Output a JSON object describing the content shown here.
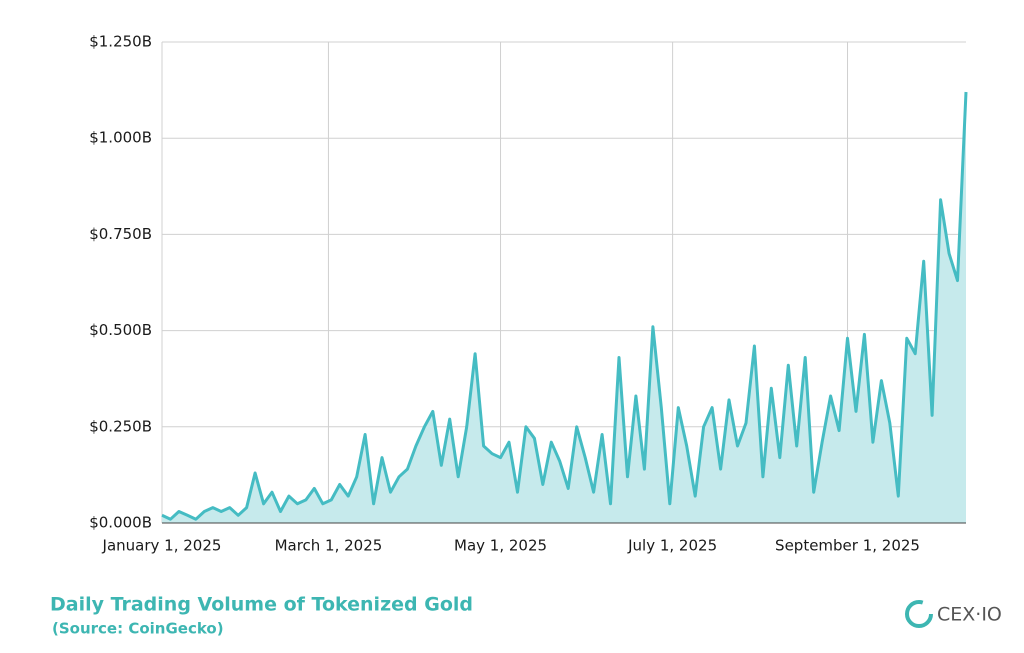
{
  "chart_data": {
    "type": "area",
    "title": "Daily Trading Volume of Tokenized Gold",
    "subtitle": "(Source: CoinGecko)",
    "brand": "CEX·IO",
    "color": "#45bcc3",
    "fill": "#c6eaec",
    "grid": true,
    "x": [
      "2025-01-01",
      "2025-01-04",
      "2025-01-07",
      "2025-01-10",
      "2025-01-13",
      "2025-01-16",
      "2025-01-19",
      "2025-01-22",
      "2025-01-25",
      "2025-01-28",
      "2025-01-31",
      "2025-02-03",
      "2025-02-06",
      "2025-02-09",
      "2025-02-12",
      "2025-02-15",
      "2025-02-18",
      "2025-02-21",
      "2025-02-24",
      "2025-02-27",
      "2025-03-02",
      "2025-03-05",
      "2025-03-08",
      "2025-03-11",
      "2025-03-14",
      "2025-03-17",
      "2025-03-20",
      "2025-03-23",
      "2025-03-26",
      "2025-03-29",
      "2025-04-01",
      "2025-04-04",
      "2025-04-07",
      "2025-04-10",
      "2025-04-13",
      "2025-04-16",
      "2025-04-19",
      "2025-04-22",
      "2025-04-25",
      "2025-04-28",
      "2025-05-01",
      "2025-05-04",
      "2025-05-07",
      "2025-05-10",
      "2025-05-13",
      "2025-05-16",
      "2025-05-19",
      "2025-05-22",
      "2025-05-25",
      "2025-05-28",
      "2025-05-31",
      "2025-06-03",
      "2025-06-06",
      "2025-06-09",
      "2025-06-12",
      "2025-06-15",
      "2025-06-18",
      "2025-06-21",
      "2025-06-24",
      "2025-06-27",
      "2025-06-30",
      "2025-07-03",
      "2025-07-06",
      "2025-07-09",
      "2025-07-12",
      "2025-07-15",
      "2025-07-18",
      "2025-07-21",
      "2025-07-24",
      "2025-07-27",
      "2025-07-30",
      "2025-08-02",
      "2025-08-05",
      "2025-08-08",
      "2025-08-11",
      "2025-08-14",
      "2025-08-17",
      "2025-08-20",
      "2025-08-23",
      "2025-08-26",
      "2025-08-29",
      "2025-09-01",
      "2025-09-04",
      "2025-09-07",
      "2025-09-10",
      "2025-09-13",
      "2025-09-16",
      "2025-09-19",
      "2025-09-22",
      "2025-09-25",
      "2025-09-28",
      "2025-10-01",
      "2025-10-04",
      "2025-10-07",
      "2025-10-10",
      "2025-10-13"
    ],
    "values": [
      0.02,
      0.01,
      0.03,
      0.02,
      0.01,
      0.03,
      0.04,
      0.03,
      0.04,
      0.02,
      0.04,
      0.13,
      0.05,
      0.08,
      0.03,
      0.07,
      0.05,
      0.06,
      0.09,
      0.05,
      0.06,
      0.1,
      0.07,
      0.12,
      0.23,
      0.05,
      0.17,
      0.08,
      0.12,
      0.14,
      0.2,
      0.25,
      0.29,
      0.15,
      0.27,
      0.12,
      0.25,
      0.44,
      0.2,
      0.18,
      0.17,
      0.21,
      0.08,
      0.25,
      0.22,
      0.1,
      0.21,
      0.16,
      0.09,
      0.25,
      0.17,
      0.08,
      0.23,
      0.05,
      0.43,
      0.12,
      0.33,
      0.14,
      0.51,
      0.3,
      0.05,
      0.3,
      0.2,
      0.07,
      0.25,
      0.3,
      0.14,
      0.32,
      0.2,
      0.26,
      0.46,
      0.12,
      0.35,
      0.17,
      0.41,
      0.2,
      0.43,
      0.08,
      0.21,
      0.33,
      0.24,
      0.48,
      0.29,
      0.49,
      0.21,
      0.37,
      0.26,
      0.07,
      0.48,
      0.44,
      0.68,
      0.28,
      0.84,
      0.7,
      0.63,
      1.12
    ],
    "xlim": [
      "2025-01-01",
      "2025-10-13"
    ],
    "xticks": [
      {
        "value": "2025-01-01",
        "label": "January 1, 2025"
      },
      {
        "value": "2025-03-01",
        "label": "March 1, 2025"
      },
      {
        "value": "2025-05-01",
        "label": "May 1, 2025"
      },
      {
        "value": "2025-07-01",
        "label": "July 1, 2025"
      },
      {
        "value": "2025-09-01",
        "label": "September 1, 2025"
      }
    ],
    "ylim": [
      0,
      1.25
    ],
    "yticks": [
      {
        "value": 0,
        "label": "$0.000B"
      },
      {
        "value": 0.25,
        "label": "$0.250B"
      },
      {
        "value": 0.5,
        "label": "$0.500B"
      },
      {
        "value": 0.75,
        "label": "$0.750B"
      },
      {
        "value": 1,
        "label": "$1.000B"
      },
      {
        "value": 1.25,
        "label": "$1.250B"
      }
    ]
  }
}
